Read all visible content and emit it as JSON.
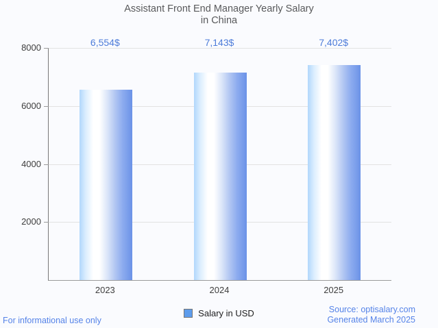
{
  "header": {
    "title_line1": "Assistant Front End Manager Yearly Salary",
    "title_line2": "in China"
  },
  "chart_data": {
    "type": "bar",
    "title": "Assistant Front End Manager Yearly Salary in China",
    "categories": [
      "2023",
      "2024",
      "2025"
    ],
    "series": [
      {
        "name": "Salary in USD",
        "values": [
          6554,
          7143,
          7402
        ]
      }
    ],
    "value_labels": [
      "6,554$",
      "7,143$",
      "7,402$"
    ],
    "xlabel": "",
    "ylabel": "",
    "ylim": [
      0,
      8000
    ],
    "yticks": [
      2000,
      4000,
      6000,
      8000
    ],
    "grid": true,
    "legend_position": "bottom"
  },
  "legend": {
    "label": "Salary in USD",
    "swatch_color": "#5d9cec"
  },
  "footer": {
    "left": "For informational use only",
    "source": "Source: optisalary.com",
    "generated": "Generated March 2025"
  },
  "colors": {
    "background": "#fafbfe",
    "bar_gradient_left": "#b1d7fc",
    "bar_gradient_right": "#6b92e7",
    "value_label": "#4d7cd9",
    "footer_text": "#5583e8",
    "grid": "#e2e2e2",
    "axis": "#787878",
    "baseline": "#999999",
    "title_text": "#58595b",
    "tick_label": "#3d3d3d"
  }
}
